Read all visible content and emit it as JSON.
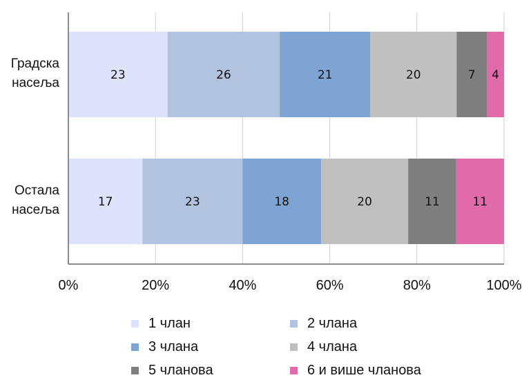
{
  "chart_data": {
    "type": "bar",
    "orientation": "horizontal",
    "stacked": "percent",
    "categories": [
      "Градска насеља",
      "Остала насеља"
    ],
    "category_lines": [
      [
        "Градска",
        "насеља"
      ],
      [
        "Остала",
        "насеља"
      ]
    ],
    "series": [
      {
        "name": "1 члан",
        "color": "#dde3fb",
        "values": [
          23,
          17
        ]
      },
      {
        "name": "2 члана",
        "color": "#b2c3df",
        "values": [
          26,
          23
        ]
      },
      {
        "name": "3 члана",
        "color": "#7ea4d3",
        "values": [
          21,
          18
        ]
      },
      {
        "name": "4 члана",
        "color": "#c0c0c0",
        "values": [
          20,
          20
        ]
      },
      {
        "name": "5 чланова",
        "color": "#7f7f7f",
        "values": [
          7,
          11
        ]
      },
      {
        "name": "6 и више чланова",
        "color": "#e06aaa",
        "values": [
          4,
          11
        ]
      }
    ],
    "x_ticks": [
      "0%",
      "20%",
      "40%",
      "60%",
      "80%",
      "100%"
    ],
    "xlim": [
      0,
      100
    ],
    "grid": "vertical",
    "legend_position": "bottom"
  }
}
